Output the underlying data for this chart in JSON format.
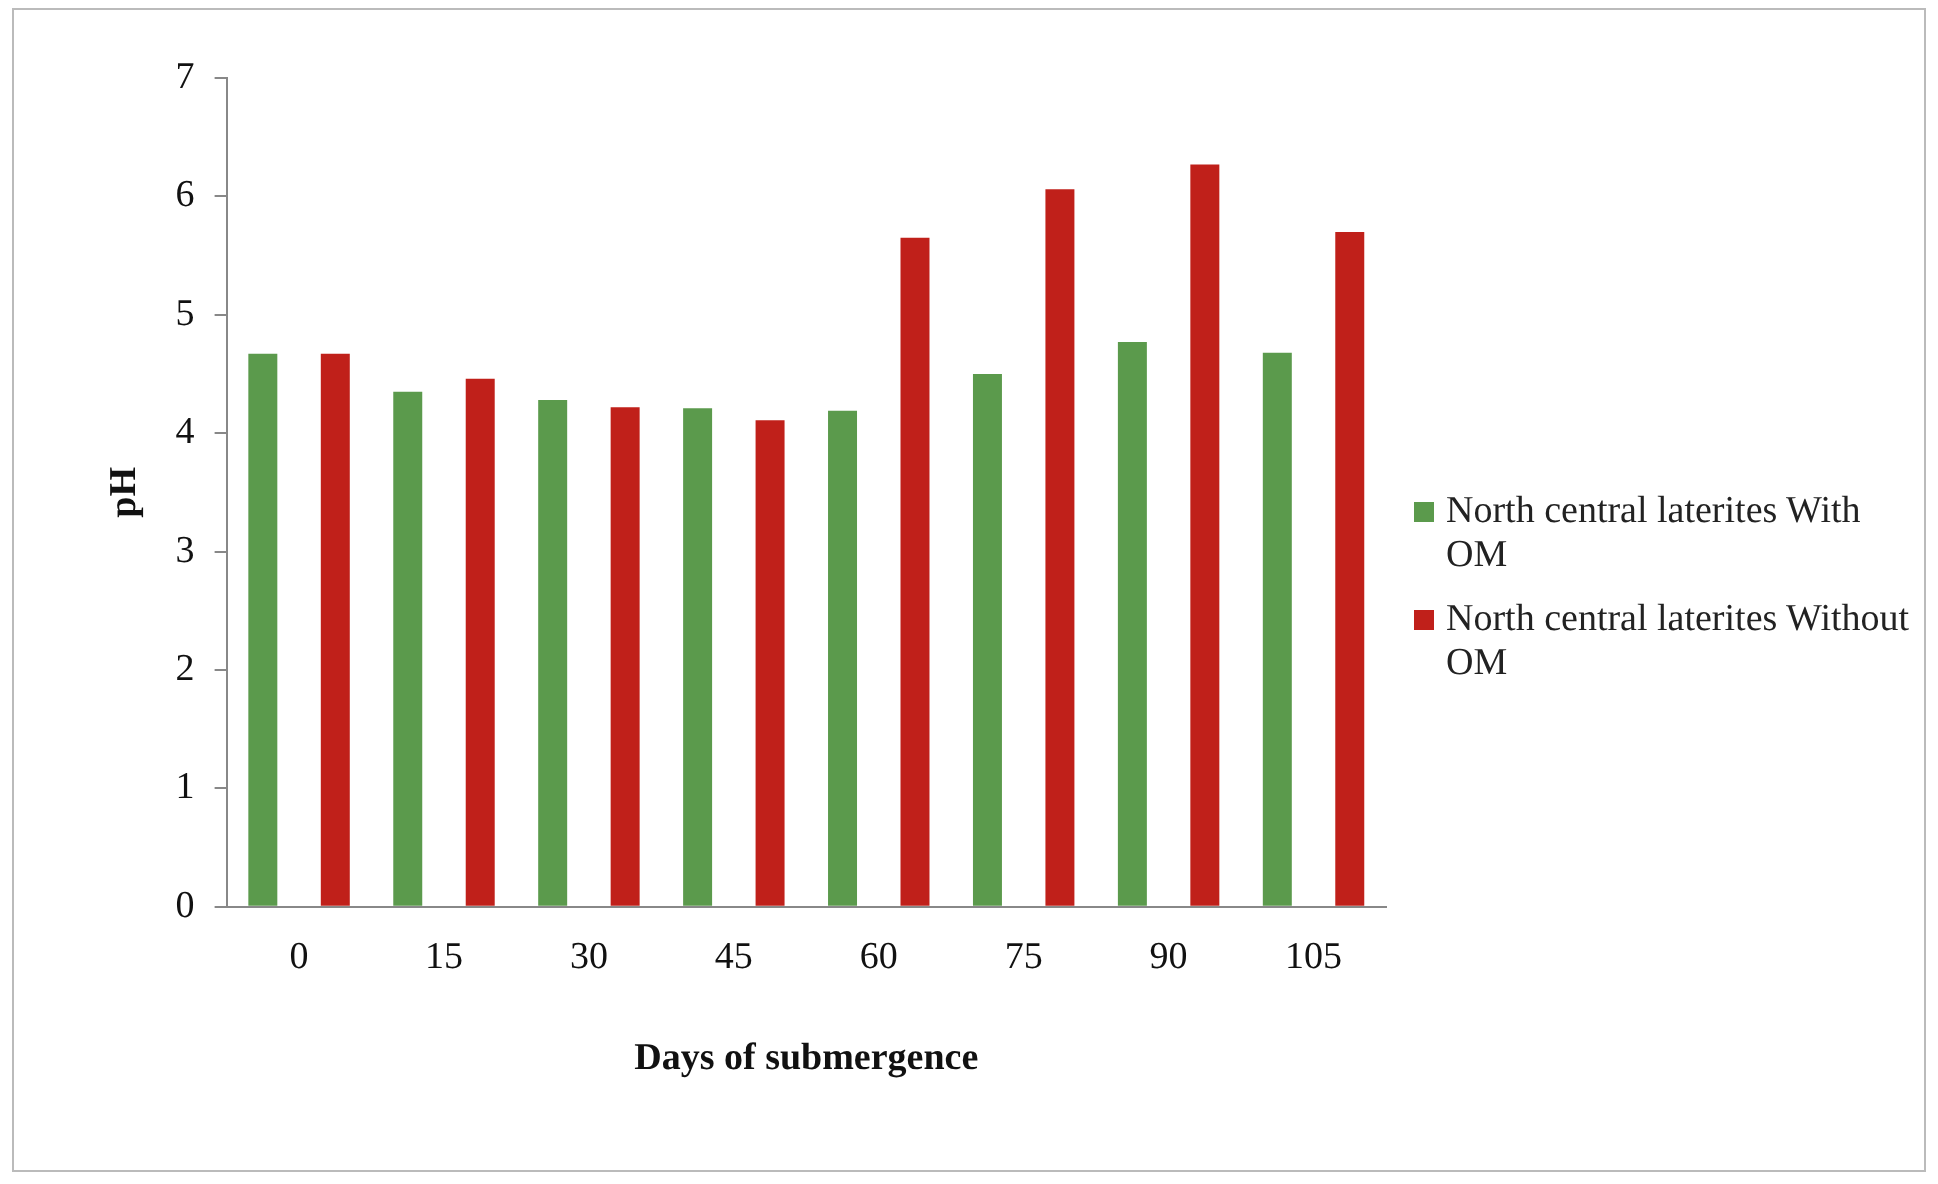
{
  "chart_data": {
    "type": "bar",
    "xlabel": "Days of submergence",
    "ylabel": "pH",
    "categories": [
      "0",
      "15",
      "30",
      "45",
      "60",
      "75",
      "90",
      "105"
    ],
    "series": [
      {
        "name": "North central laterites With OM",
        "color": "#5b9a4c",
        "values": [
          4.67,
          4.35,
          4.28,
          4.21,
          4.19,
          4.5,
          4.77,
          4.68
        ]
      },
      {
        "name": "North central laterites Without OM",
        "color": "#c0201a",
        "values": [
          4.67,
          4.46,
          4.22,
          4.11,
          5.65,
          6.06,
          6.27,
          5.7
        ]
      }
    ],
    "ylim": [
      0,
      7
    ],
    "yticks": [
      0,
      1,
      2,
      3,
      4,
      5,
      6,
      7
    ],
    "grid": false,
    "legend": "right"
  }
}
